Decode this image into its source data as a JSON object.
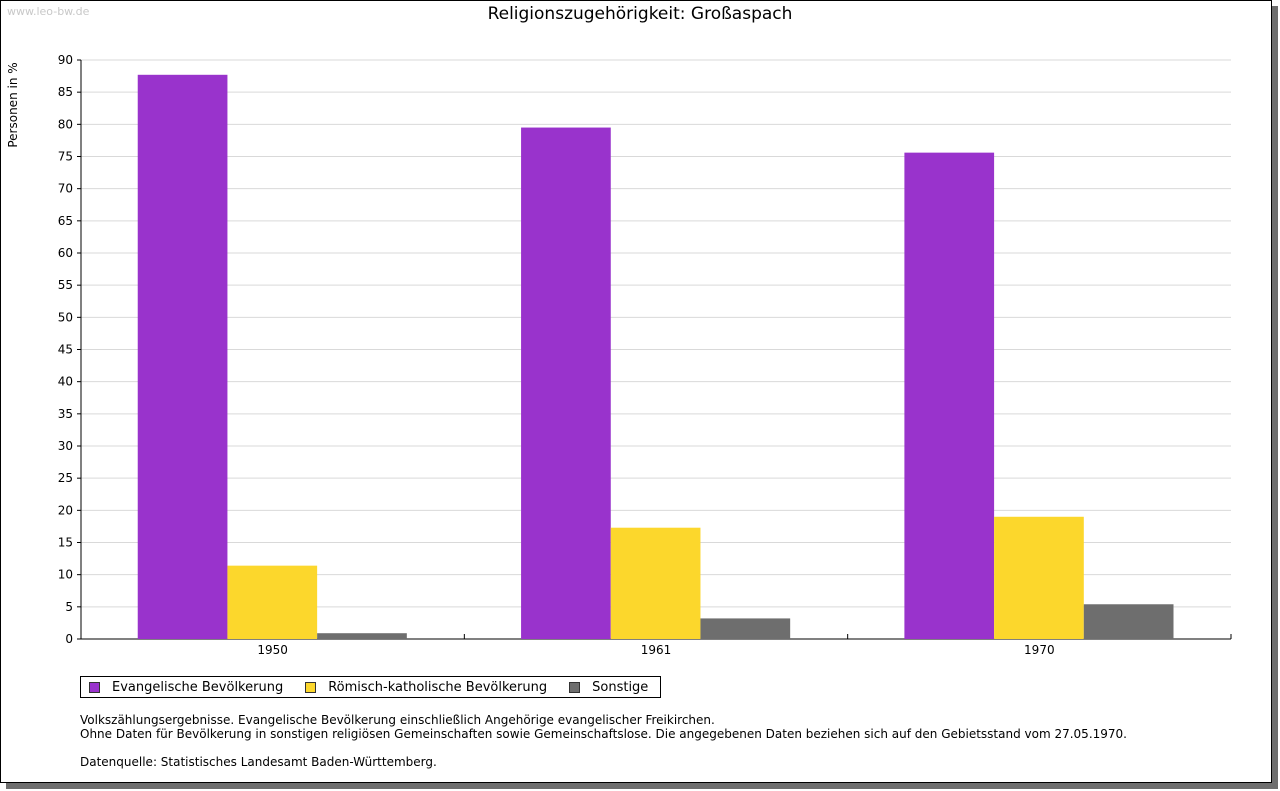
{
  "watermark": "www.leo-bw.de",
  "colors": {
    "evangelisch": "#9933cc",
    "katholisch": "#fcd72c",
    "sonstige": "#6e6e6e",
    "grid": "#d9d9d9",
    "axis": "#000000"
  },
  "chart_data": {
    "type": "bar",
    "title": "Religionszugehörigkeit: Großaspach",
    "xlabel": "",
    "ylabel": "Personen in %",
    "ylim": [
      0,
      90
    ],
    "ytick_step": 5,
    "grid": true,
    "legend_position": "bottom-left",
    "categories": [
      "1950",
      "1961",
      "1970"
    ],
    "series": [
      {
        "name": "Evangelische Bevölkerung",
        "color_key": "evangelisch",
        "values": [
          87.7,
          79.5,
          75.6
        ]
      },
      {
        "name": "Römisch-katholische Bevölkerung",
        "color_key": "katholisch",
        "values": [
          11.4,
          17.3,
          19.0
        ]
      },
      {
        "name": "Sonstige",
        "color_key": "sonstige",
        "values": [
          0.9,
          3.2,
          5.4
        ]
      }
    ]
  },
  "notes": {
    "line1": "Volkszählungsergebnisse. Evangelische Bevölkerung einschließlich Angehörige evangelischer Freikirchen.",
    "line2": "Ohne Daten für Bevölkerung in sonstigen religiösen Gemeinschaften sowie Gemeinschaftslose. Die angegebenen Daten beziehen sich auf den Gebietsstand vom 27.05.1970.",
    "source": "Datenquelle: Statistisches Landesamt Baden-Württemberg."
  }
}
